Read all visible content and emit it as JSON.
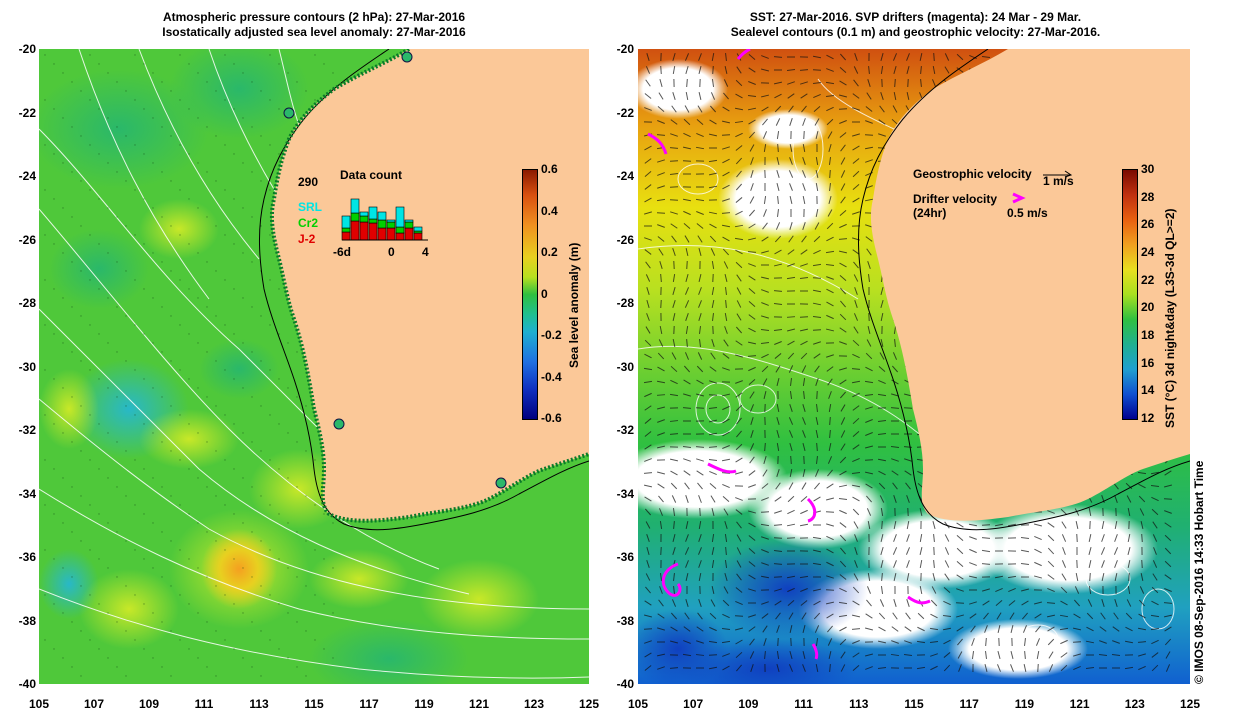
{
  "left_map": {
    "title_line1": "Atmospheric pressure contours (2 hPa): 27-Mar-2016",
    "title_line2": "Isostatically adjusted sea level anomaly: 27-Mar-2016",
    "colorbar": {
      "label": "Sea level anomaly (m)",
      "ticks": [
        "0.6",
        "0.4",
        "0.2",
        "0",
        "-0.2",
        "-0.4",
        "-0.6"
      ]
    },
    "data_count": {
      "title": "Data count",
      "max_label": "290",
      "series_labels": [
        "SRL",
        "Cr2",
        "J-2"
      ],
      "series_colors": [
        "#00e5e5",
        "#00d000",
        "#e00000"
      ],
      "x_labels": [
        "-6d",
        "0",
        "4"
      ],
      "bars": [
        {
          "srl": 60,
          "cr2": 20,
          "j2": 40
        },
        {
          "srl": 70,
          "cr2": 40,
          "j2": 95
        },
        {
          "srl": 20,
          "cr2": 30,
          "j2": 90
        },
        {
          "srl": 60,
          "cr2": 20,
          "j2": 85
        },
        {
          "srl": 40,
          "cr2": 40,
          "j2": 60
        },
        {
          "srl": 10,
          "cr2": 30,
          "j2": 60
        },
        {
          "srl": 100,
          "cr2": 30,
          "j2": 35
        },
        {
          "srl": 10,
          "cr2": 30,
          "j2": 60
        },
        {
          "srl": 20,
          "cr2": 10,
          "j2": 35
        }
      ]
    }
  },
  "right_map": {
    "title_line1": "SST: 27-Mar-2016. SVP drifters (magenta): 24 Mar - 29 Mar.",
    "title_line2": "Sealevel contours (0.1 m) and geostrophic velocity: 27-Mar-2016.",
    "colorbar": {
      "label": "SST (°C) 3d night&day (L3S-3d QL>=2)",
      "ticks": [
        "30",
        "28",
        "26",
        "24",
        "22",
        "20",
        "18",
        "16",
        "14",
        "12"
      ]
    },
    "legend": {
      "geo_label": "Geostrophic velocity",
      "geo_scale": "1 m/s",
      "drifter_label": "Drifter velocity",
      "drifter_sub": "(24hr)",
      "drifter_scale": "0.5 m/s"
    }
  },
  "axes": {
    "lat_labels": [
      "-20",
      "-22",
      "-24",
      "-26",
      "-28",
      "-30",
      "-32",
      "-34",
      "-36",
      "-38",
      "-40"
    ],
    "lon_labels": [
      "105",
      "107",
      "109",
      "111",
      "113",
      "115",
      "117",
      "119",
      "121",
      "123",
      "125"
    ]
  },
  "credit": "© IMOS 08-Sep-2016 14:33 Hobart Time",
  "colors": {
    "land": "#fbc898",
    "ocean_green": "#5fd23a",
    "coast": "#000000"
  }
}
